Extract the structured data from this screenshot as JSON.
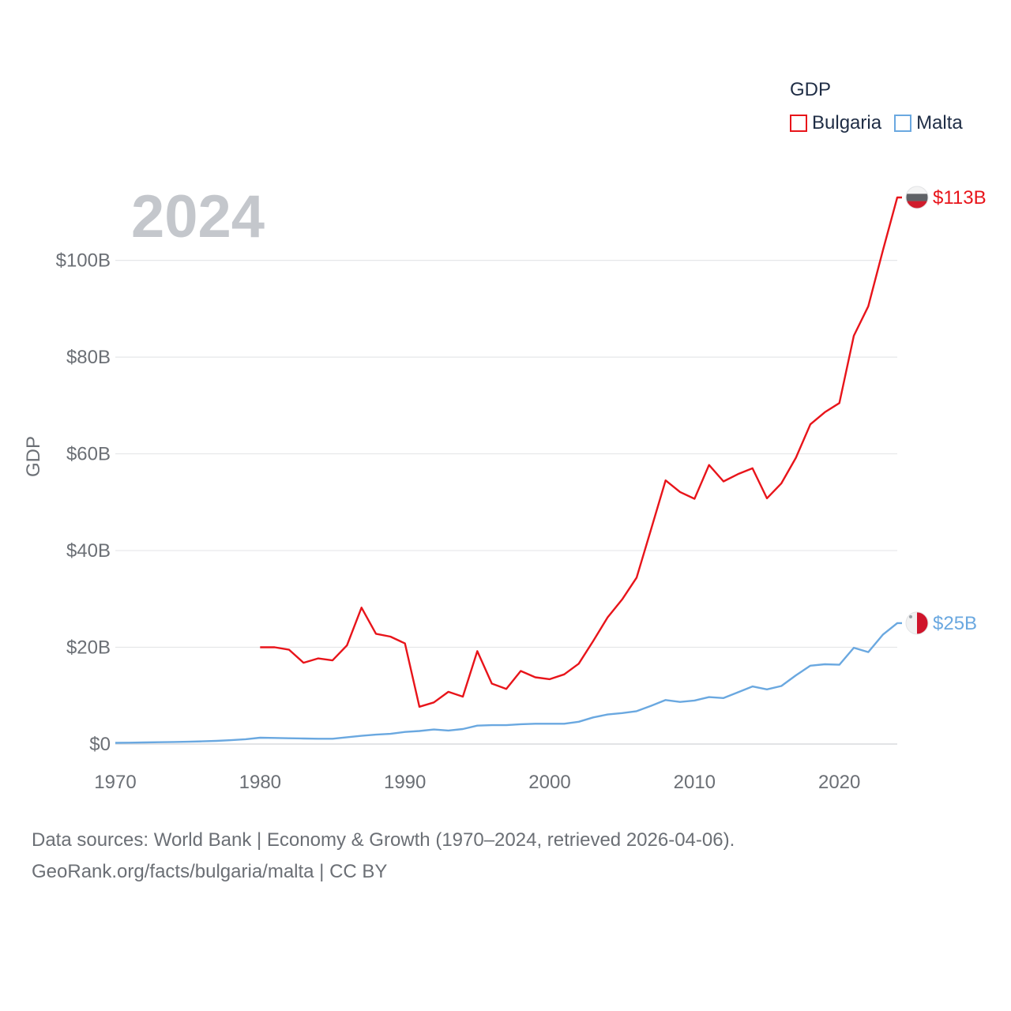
{
  "chart_data": {
    "type": "line",
    "title": "",
    "year_watermark": "2024",
    "ylabel": "GDP",
    "xlabel": "",
    "xlim": [
      1970,
      2024
    ],
    "ylim": [
      0,
      113
    ],
    "y_unit": "billions USD",
    "x_ticks": [
      1970,
      1980,
      1990,
      2000,
      2010,
      2020
    ],
    "x_tick_labels": [
      "1970",
      "1980",
      "1990",
      "2000",
      "2010",
      "2020"
    ],
    "y_ticks": [
      0,
      20,
      40,
      60,
      80,
      100
    ],
    "y_tick_labels": [
      "$0",
      "$20B",
      "$40B",
      "$60B",
      "$80B",
      "$100B"
    ],
    "grid": true,
    "legend": {
      "title": "GDP",
      "placement": "top-right"
    },
    "series": [
      {
        "name": "Bulgaria",
        "color": "#e8141a",
        "end_label": "$113B",
        "flag_icon": "bulgaria-flag-icon",
        "x": [
          1980,
          1981,
          1982,
          1983,
          1984,
          1985,
          1986,
          1987,
          1988,
          1989,
          1990,
          1991,
          1992,
          1993,
          1994,
          1995,
          1996,
          1997,
          1998,
          1999,
          2000,
          2001,
          2002,
          2003,
          2004,
          2005,
          2006,
          2007,
          2008,
          2009,
          2010,
          2011,
          2012,
          2013,
          2014,
          2015,
          2016,
          2017,
          2018,
          2019,
          2020,
          2021,
          2022,
          2023,
          2024
        ],
        "values": [
          20.0,
          20.0,
          19.5,
          16.8,
          17.7,
          17.3,
          20.4,
          28.2,
          22.8,
          22.2,
          20.8,
          7.7,
          8.6,
          10.8,
          9.8,
          19.2,
          12.5,
          11.4,
          15.1,
          13.8,
          13.4,
          14.4,
          16.6,
          21.3,
          26.2,
          29.9,
          34.4,
          44.4,
          54.5,
          52.1,
          50.7,
          57.7,
          54.3,
          55.8,
          57.0,
          50.8,
          53.9,
          59.2,
          66.1,
          68.6,
          70.5,
          84.4,
          90.5,
          102.0,
          113.0
        ]
      },
      {
        "name": "Malta",
        "color": "#6aa8e0",
        "end_label": "$25B",
        "flag_icon": "malta-flag-icon",
        "x": [
          1970,
          1971,
          1972,
          1973,
          1974,
          1975,
          1976,
          1977,
          1978,
          1979,
          1980,
          1981,
          1982,
          1983,
          1984,
          1985,
          1986,
          1987,
          1988,
          1989,
          1990,
          1991,
          1992,
          1993,
          1994,
          1995,
          1996,
          1997,
          1998,
          1999,
          2000,
          2001,
          2002,
          2003,
          2004,
          2005,
          2006,
          2007,
          2008,
          2009,
          2010,
          2011,
          2012,
          2013,
          2014,
          2015,
          2016,
          2017,
          2018,
          2019,
          2020,
          2021,
          2022,
          2023,
          2024
        ],
        "values": [
          0.25,
          0.28,
          0.33,
          0.38,
          0.42,
          0.48,
          0.55,
          0.65,
          0.8,
          1.0,
          1.3,
          1.25,
          1.2,
          1.15,
          1.1,
          1.1,
          1.4,
          1.7,
          1.95,
          2.1,
          2.5,
          2.7,
          3.0,
          2.8,
          3.1,
          3.8,
          3.9,
          3.9,
          4.1,
          4.2,
          4.2,
          4.2,
          4.6,
          5.5,
          6.1,
          6.4,
          6.8,
          7.9,
          9.1,
          8.7,
          9.0,
          9.7,
          9.5,
          10.7,
          11.9,
          11.3,
          12.0,
          14.2,
          16.2,
          16.5,
          16.4,
          19.9,
          19.0,
          22.6,
          25.0
        ]
      }
    ]
  },
  "legend": {
    "title": "GDP",
    "items": [
      {
        "label": "Bulgaria",
        "color": "#e8141a"
      },
      {
        "label": "Malta",
        "color": "#6aa8e0"
      }
    ]
  },
  "footer": {
    "source_line": "Data sources: World Bank | Economy & Growth (1970–2024, retrieved 2026-04-06).",
    "credit_line": "GeoRank.org/facts/bulgaria/malta | CC BY"
  }
}
